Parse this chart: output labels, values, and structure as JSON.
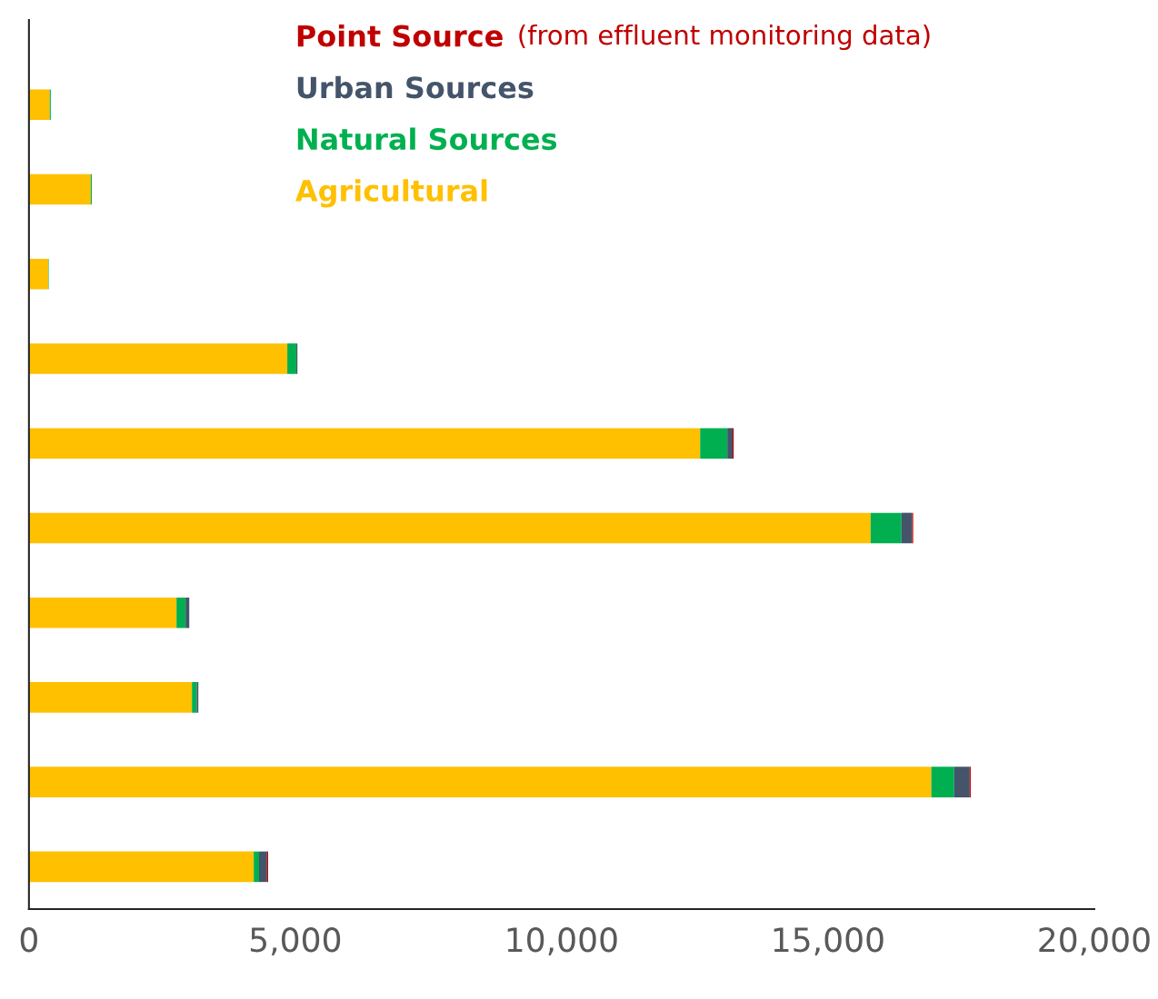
{
  "chart_data": {
    "type": "bar",
    "orientation": "horizontal",
    "stacked": true,
    "categories": [
      null,
      null,
      null,
      null,
      null,
      null,
      null,
      null,
      null,
      null
    ],
    "series": [
      {
        "name": "Agricultural",
        "color": "#ffc000",
        "values": [
          390,
          1160,
          360,
          4850,
          12600,
          15800,
          2770,
          3060,
          16940,
          4220
        ]
      },
      {
        "name": "Natural Sources",
        "color": "#00b050",
        "values": [
          20,
          20,
          10,
          170,
          510,
          580,
          170,
          90,
          430,
          100
        ]
      },
      {
        "name": "Urban Sources",
        "color": "#44546a",
        "values": [
          null,
          null,
          null,
          20,
          100,
          200,
          70,
          30,
          290,
          150
        ]
      },
      {
        "name": "Point Source",
        "color": "#c00000",
        "values": [
          null,
          null,
          null,
          null,
          20,
          20,
          null,
          null,
          20,
          20
        ]
      }
    ],
    "annotations": [
      "(from effluent monitoring data)"
    ],
    "xlim": [
      0,
      20000
    ],
    "xticks": [
      0,
      {
        "value": 5000,
        "label": "5,000"
      },
      {
        "value": 10000,
        "label": "10,000"
      },
      {
        "value": 15000,
        "label": "15,000"
      },
      {
        "value": 20000,
        "label": "20,000"
      }
    ],
    "legend": "top",
    "grid": false
  }
}
